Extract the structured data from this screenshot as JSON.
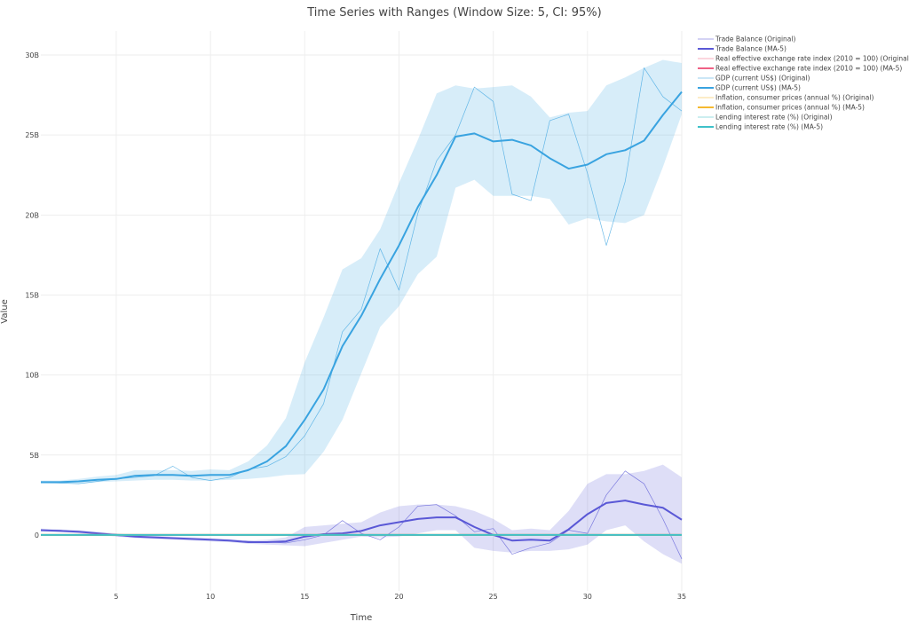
{
  "chart_data": {
    "type": "line",
    "title": "Time Series with Ranges (Window Size: 5, CI: 95%)",
    "xlabel": "Time",
    "ylabel": "Value",
    "xlim": [
      1,
      35
    ],
    "ylim": [
      -3500000000,
      31500000000
    ],
    "x_ticks": [
      5,
      10,
      15,
      20,
      25,
      30,
      35
    ],
    "y_ticks": [
      0,
      5000000000,
      10000000000,
      15000000000,
      20000000000,
      25000000000,
      30000000000
    ],
    "y_tick_labels": [
      "0",
      "5B",
      "10B",
      "15B",
      "20B",
      "25B",
      "30B"
    ],
    "grid": true,
    "legend_position": "top-right",
    "x": [
      1,
      2,
      3,
      4,
      5,
      6,
      7,
      8,
      9,
      10,
      11,
      12,
      13,
      14,
      15,
      16,
      17,
      18,
      19,
      20,
      21,
      22,
      23,
      24,
      25,
      26,
      27,
      28,
      29,
      30,
      31,
      32,
      33,
      34,
      35
    ],
    "series": [
      {
        "name": "Trade Balance (Original)",
        "color": "#5a58d6",
        "kind": "original",
        "values": [
          0.3,
          0.3,
          0.2,
          0.1,
          -0.05,
          -0.1,
          -0.15,
          -0.2,
          -0.25,
          -0.3,
          -0.35,
          -0.4,
          -0.45,
          -0.5,
          -0.3,
          0.0,
          0.9,
          0.1,
          -0.3,
          0.5,
          1.8,
          1.9,
          1.2,
          0.2,
          0.4,
          -1.2,
          -0.8,
          -0.5,
          0.3,
          0.1,
          2.5,
          4.0,
          3.2,
          1.0,
          -1.5
        ]
      },
      {
        "name": "Trade Balance (MA-5)",
        "color": "#5a58d6",
        "kind": "ma",
        "values": [
          0.3,
          0.25,
          0.2,
          0.1,
          0.0,
          -0.1,
          -0.15,
          -0.2,
          -0.25,
          -0.3,
          -0.35,
          -0.45,
          -0.45,
          -0.4,
          -0.1,
          0.05,
          0.1,
          0.25,
          0.6,
          0.8,
          1.0,
          1.1,
          1.1,
          0.5,
          0.0,
          -0.35,
          -0.3,
          -0.35,
          0.35,
          1.3,
          2.0,
          2.15,
          1.9,
          1.7,
          0.95
        ],
        "ci_lower": [
          0.2,
          0.2,
          0.1,
          0.0,
          -0.1,
          -0.2,
          -0.25,
          -0.3,
          -0.35,
          -0.4,
          -0.45,
          -0.55,
          -0.6,
          -0.65,
          -0.7,
          -0.5,
          -0.3,
          -0.1,
          -0.15,
          -0.1,
          0.1,
          0.3,
          0.3,
          -0.8,
          -1.0,
          -1.1,
          -1.0,
          -1.0,
          -0.9,
          -0.6,
          0.3,
          0.6,
          -0.4,
          -1.2,
          -1.8
        ],
        "ci_upper": [
          0.4,
          0.35,
          0.3,
          0.2,
          0.1,
          0.0,
          -0.05,
          -0.1,
          -0.15,
          -0.2,
          -0.25,
          -0.35,
          -0.3,
          -0.15,
          0.5,
          0.6,
          0.7,
          0.8,
          1.4,
          1.8,
          1.9,
          1.9,
          1.8,
          1.5,
          1.0,
          0.3,
          0.4,
          0.3,
          1.5,
          3.2,
          3.8,
          3.8,
          4.0,
          4.4,
          3.6
        ]
      },
      {
        "name": "Real effective exchange rate index (2010 = 100) (Original)",
        "color": "#ef6185",
        "kind": "original",
        "values": [
          1e-07,
          1e-07,
          1e-07,
          1e-07,
          1e-07,
          1e-07,
          1e-07,
          1e-07,
          1e-07,
          1e-07,
          1e-07,
          1e-07,
          1e-07,
          1e-07,
          1e-07,
          1e-07,
          1e-07,
          1e-07,
          1e-07,
          1e-07,
          1e-07,
          1e-07,
          1e-07,
          1e-07,
          1e-07,
          1e-07,
          1e-07,
          1e-07,
          1e-07,
          1e-07,
          1e-07,
          1e-07,
          1e-07,
          1e-07,
          1e-07
        ]
      },
      {
        "name": "Real effective exchange rate index (2010 = 100) (MA-5)",
        "color": "#ef6185",
        "kind": "ma",
        "values": [
          1e-07,
          1e-07,
          1e-07,
          1e-07,
          1e-07,
          1e-07,
          1e-07,
          1e-07,
          1e-07,
          1e-07,
          1e-07,
          1e-07,
          1e-07,
          1e-07,
          1e-07,
          1e-07,
          1e-07,
          1e-07,
          1e-07,
          1e-07,
          1e-07,
          1e-07,
          1e-07,
          1e-07,
          1e-07,
          1e-07,
          1e-07,
          1e-07,
          1e-07,
          1e-07,
          1e-07,
          1e-07,
          1e-07,
          1e-07,
          1e-07
        ]
      },
      {
        "name": "GDP (current US$) (Original)",
        "color": "#39a3e0",
        "kind": "original",
        "values": [
          3.3,
          3.25,
          3.2,
          3.35,
          3.5,
          3.6,
          3.7,
          4.3,
          3.6,
          3.4,
          3.6,
          4.1,
          4.3,
          4.9,
          6.2,
          8.2,
          12.7,
          14.1,
          17.9,
          15.3,
          20.1,
          23.4,
          25.0,
          28.0,
          27.1,
          21.3,
          20.9,
          25.9,
          26.3,
          22.6,
          18.1,
          22.1,
          29.2,
          27.4,
          26.5
        ]
      },
      {
        "name": "GDP (current US$) (MA-5)",
        "color": "#39a3e0",
        "kind": "ma",
        "values": [
          3.3,
          3.3,
          3.35,
          3.45,
          3.5,
          3.7,
          3.75,
          3.75,
          3.7,
          3.75,
          3.75,
          4.05,
          4.6,
          5.55,
          7.2,
          9.1,
          11.8,
          13.7,
          16.0,
          18.1,
          20.5,
          22.5,
          24.9,
          25.1,
          24.6,
          24.7,
          24.35,
          23.55,
          22.9,
          23.15,
          23.8,
          24.05,
          24.65,
          26.25,
          27.7
        ],
        "ci_lower": [
          3.2,
          3.2,
          3.2,
          3.3,
          3.35,
          3.4,
          3.45,
          3.45,
          3.4,
          3.4,
          3.45,
          3.5,
          3.6,
          3.75,
          3.8,
          5.2,
          7.2,
          10.1,
          13.0,
          14.3,
          16.3,
          17.4,
          21.7,
          22.2,
          21.2,
          21.2,
          21.2,
          21.0,
          19.4,
          19.8,
          19.6,
          19.5,
          20.0,
          23.0,
          26.3
        ],
        "ci_upper": [
          3.4,
          3.4,
          3.5,
          3.65,
          3.75,
          4.05,
          4.05,
          4.05,
          4.0,
          4.1,
          4.05,
          4.6,
          5.6,
          7.3,
          10.8,
          13.6,
          16.6,
          17.3,
          19.1,
          22.0,
          24.7,
          27.6,
          28.1,
          27.9,
          28.0,
          28.1,
          27.4,
          26.1,
          26.4,
          26.5,
          28.1,
          28.6,
          29.2,
          29.7,
          29.5
        ]
      },
      {
        "name": "Inflation, consumer prices (annual %) (Original)",
        "color": "#f5b930",
        "kind": "original",
        "values": [
          1e-07,
          1e-07,
          1e-07,
          1e-07,
          1e-07,
          1e-07,
          1e-07,
          1e-07,
          1e-07,
          1e-07,
          1e-07,
          1e-07,
          1e-07,
          1e-07,
          1e-07,
          1e-07,
          1e-07,
          1e-07,
          1e-07,
          1e-07,
          1e-07,
          1e-07,
          1e-07,
          1e-07,
          1e-07,
          1e-07,
          1e-07,
          1e-07,
          1e-07,
          1e-07,
          1e-07,
          1e-07,
          1e-07,
          1e-07,
          1e-07
        ]
      },
      {
        "name": "Inflation, consumer prices (annual %) (MA-5)",
        "color": "#f5b930",
        "kind": "ma",
        "values": [
          1e-07,
          1e-07,
          1e-07,
          1e-07,
          1e-07,
          1e-07,
          1e-07,
          1e-07,
          1e-07,
          1e-07,
          1e-07,
          1e-07,
          1e-07,
          1e-07,
          1e-07,
          1e-07,
          1e-07,
          1e-07,
          1e-07,
          1e-07,
          1e-07,
          1e-07,
          1e-07,
          1e-07,
          1e-07,
          1e-07,
          1e-07,
          1e-07,
          1e-07,
          1e-07,
          1e-07,
          1e-07,
          1e-07,
          1e-07,
          1e-07
        ]
      },
      {
        "name": "Lending interest rate (%) (Original)",
        "color": "#3fc1c9",
        "kind": "original",
        "values": [
          1e-07,
          1e-07,
          1e-07,
          1e-07,
          1e-07,
          1e-07,
          1e-07,
          1e-07,
          1e-07,
          1e-07,
          1e-07,
          1e-07,
          1e-07,
          1e-07,
          1e-07,
          1e-07,
          1e-07,
          1e-07,
          1e-07,
          1e-07,
          1e-07,
          1e-07,
          1e-07,
          1e-07,
          1e-07,
          1e-07,
          1e-07,
          1e-07,
          1e-07,
          1e-07,
          1e-07,
          1e-07,
          1e-07,
          1e-07,
          1e-07
        ]
      },
      {
        "name": "Lending interest rate (%) (MA-5)",
        "color": "#3fc1c9",
        "kind": "ma",
        "values": [
          1e-07,
          1e-07,
          1e-07,
          1e-07,
          1e-07,
          1e-07,
          1e-07,
          1e-07,
          1e-07,
          1e-07,
          1e-07,
          1e-07,
          1e-07,
          1e-07,
          1e-07,
          1e-07,
          1e-07,
          1e-07,
          1e-07,
          1e-07,
          1e-07,
          1e-07,
          1e-07,
          1e-07,
          1e-07,
          1e-07,
          1e-07,
          1e-07,
          1e-07,
          1e-07,
          1e-07,
          1e-07,
          1e-07,
          1e-07,
          1e-07
        ]
      }
    ],
    "values_unit_multiplier": 1000000000
  }
}
